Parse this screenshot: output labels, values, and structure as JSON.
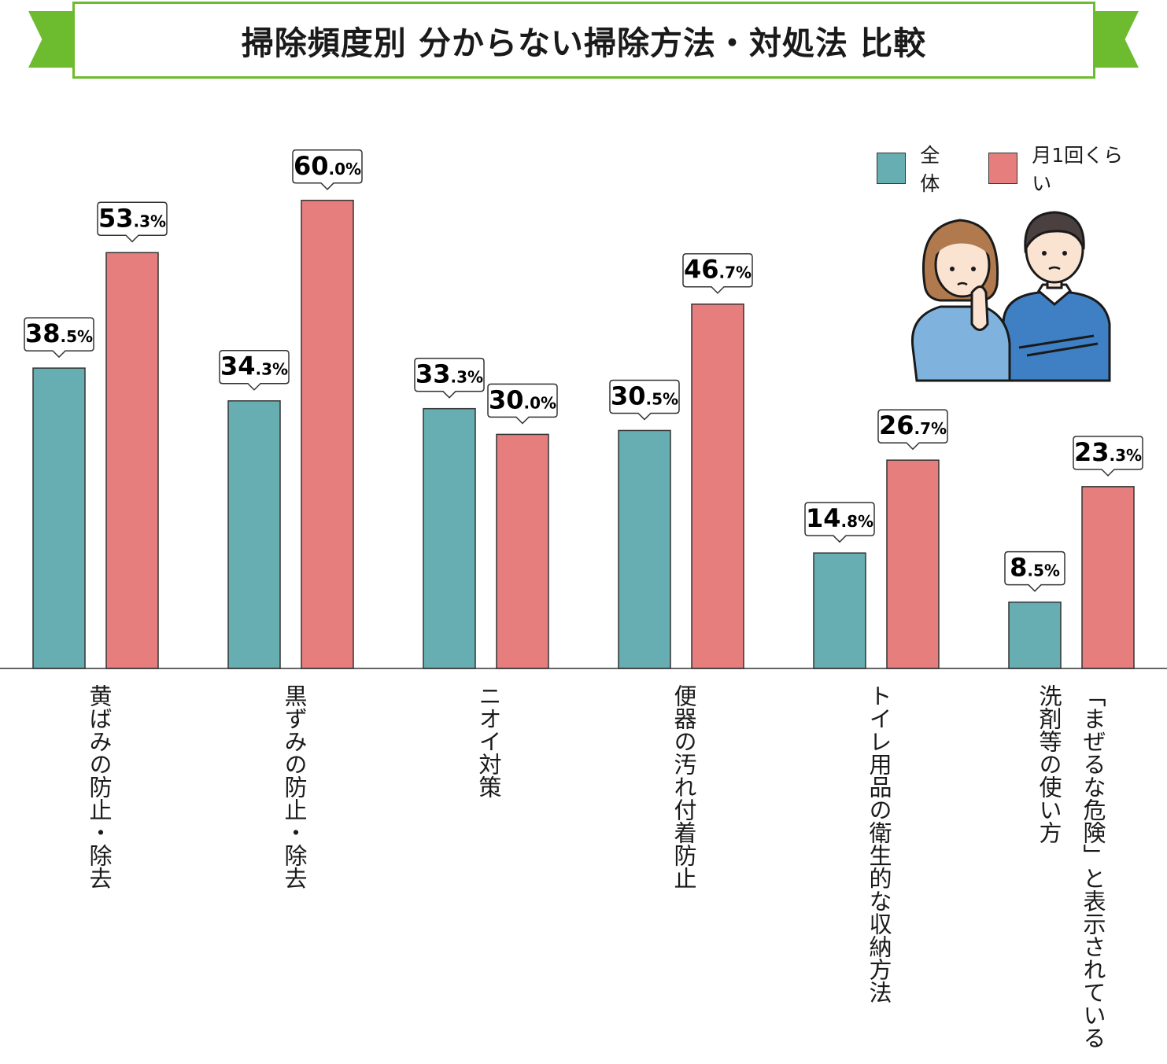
{
  "title": "掃除頻度別 分からない掃除方法・対処法 比較",
  "colors": {
    "overall": "#66aeb1",
    "monthly": "#e67e7e",
    "ribbon": "#6dbb2e"
  },
  "legend": [
    {
      "label": "全体",
      "color": "#66aeb1"
    },
    {
      "label": "月1回くらい",
      "color": "#e67e7e"
    }
  ],
  "chart_data": {
    "type": "bar",
    "title": "掃除頻度別 分からない掃除方法・対処法 比較",
    "categories": [
      "黄ばみの防止・除去",
      "黒ずみの防止・除去",
      "ニオイ対策",
      "便器の汚れ付着防止",
      "トイレ用品の衛生的な収納方法",
      [
        "洗剤等の使い方",
        "「まぜるな危険」と表示されている"
      ]
    ],
    "series": [
      {
        "name": "全体",
        "values": [
          38.5,
          34.3,
          33.3,
          30.5,
          14.8,
          8.5
        ]
      },
      {
        "name": "月1回くらい",
        "values": [
          53.3,
          60.0,
          30.0,
          46.7,
          26.7,
          23.3
        ]
      }
    ],
    "value_labels": [
      [
        "38.5%",
        "34.3%",
        "33.3%",
        "30.5%",
        "14.8%",
        "8.5%"
      ],
      [
        "53.3%",
        "60.0%",
        "30.0%",
        "46.7%",
        "26.7%",
        "23.3%"
      ]
    ],
    "unit": "%",
    "ylim": [
      0,
      60
    ],
    "grid": false,
    "legend_position": "top-right"
  }
}
